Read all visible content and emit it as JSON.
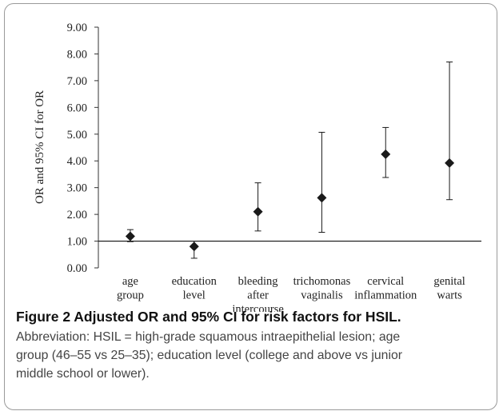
{
  "chart_data": {
    "type": "scatter",
    "subtype": "error-bar",
    "ylabel": "OR and 95% CI for OR",
    "ylim": [
      0,
      9
    ],
    "yticks": [
      "0.00",
      "1.00",
      "2.00",
      "3.00",
      "4.00",
      "5.00",
      "6.00",
      "7.00",
      "8.00",
      "9.00"
    ],
    "reference_line": 1,
    "categories": [
      [
        "age",
        "group"
      ],
      [
        "education",
        "level"
      ],
      [
        "bleeding",
        "after",
        "intercourse"
      ],
      [
        "trichomonas",
        "vaginalis"
      ],
      [
        "cervical",
        "inflammation"
      ],
      [
        "genital",
        "warts"
      ]
    ],
    "points": [
      {
        "or": 1.18,
        "lower": 0.98,
        "upper": 1.43
      },
      {
        "or": 0.8,
        "lower": 0.36,
        "upper": 1.0
      },
      {
        "or": 2.1,
        "lower": 1.38,
        "upper": 3.18
      },
      {
        "or": 2.62,
        "lower": 1.33,
        "upper": 5.07
      },
      {
        "or": 4.25,
        "lower": 3.38,
        "upper": 5.25
      },
      {
        "or": 3.92,
        "lower": 2.55,
        "upper": 7.7
      }
    ],
    "marker": "diamond",
    "color": "#1a1a1a"
  },
  "caption": {
    "title": "Figure 2 Adjusted OR and 95% CI for risk factors for HSIL.",
    "lines": [
      "Abbreviation: HSIL = high-grade squamous intraepithelial lesion; age",
      "group (46–55 vs 25–35); education level (college and above vs junior",
      "middle school or lower)."
    ]
  }
}
